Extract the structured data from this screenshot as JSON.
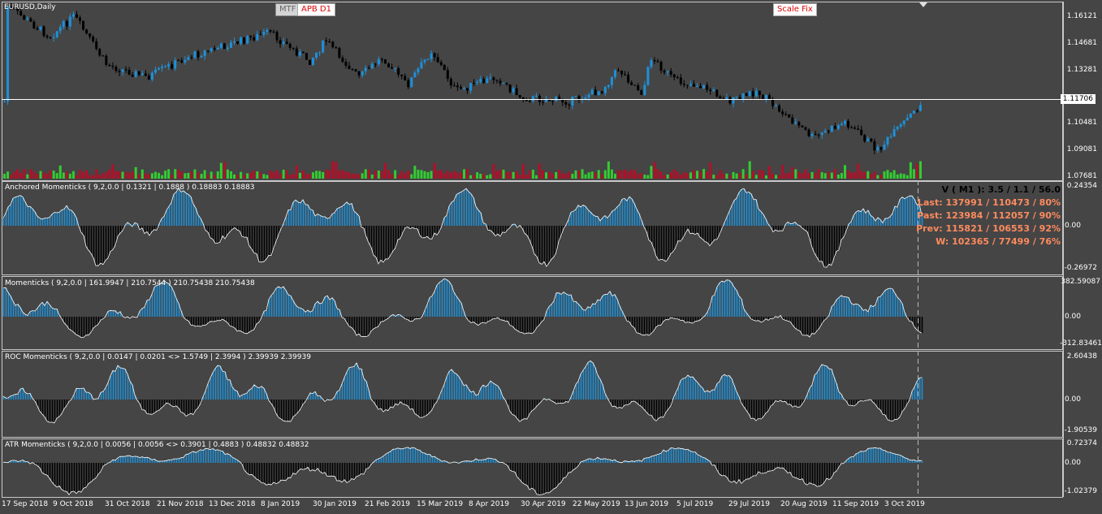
{
  "symbol_label": "EURUSD,Daily",
  "buttons": {
    "mtf": "MTF",
    "apb": "APB D1",
    "scale": "Scale Fix"
  },
  "last_price": "1.11706",
  "price_axis": [
    "1.16121",
    "1.14681",
    "1.13281",
    "1.10481",
    "1.09081",
    "1.07681"
  ],
  "panes": [
    {
      "title": "Anchored Momenticks ( 9,2,0.0 | 0.1321 | 0.1888 ) 0.18883 0.18883",
      "axis": [
        "0.24354",
        "0.00",
        "-0.26972"
      ]
    },
    {
      "title": "Momenticks ( 9,2,0.0 | 161.9947 | 210.7544 ) 210.75438 210.75438",
      "axis": [
        "382.59087",
        "0.00",
        "-312.83461"
      ]
    },
    {
      "title": "ROC Momenticks ( 9,2,0.0 | 0.0147 | 0.0201 <> 1.5749 | 2.3994 ) 2.39939 2.39939",
      "axis": [
        "2.60438",
        "0.00",
        "-1.90539"
      ]
    },
    {
      "title": "ATR Momenticks ( 9,2,0.0 | 0.0056 | 0.0056 <> 0.3901 | 0.4883 ) 0.48832 0.48832",
      "axis": [
        "0.72374",
        "0.00",
        "-1.02379"
      ]
    }
  ],
  "stats": {
    "v": "V ( M1 ): 3.5 / 1.1 / 56.0",
    "last": "Last: 137991 / 110473 / 80%",
    "past": "Past: 123984 / 112057 / 90%",
    "prev": "Prev: 115821 / 106553 / 92%",
    "w": "W: 102365 / 77499 / 76%"
  },
  "dates": [
    "17 Sep 2018",
    "9 Oct 2018",
    "31 Oct 2018",
    "21 Nov 2018",
    "13 Dec 2018",
    "8 Jan 2019",
    "30 Jan 2019",
    "21 Feb 2019",
    "15 Mar 2019",
    "8 Apr 2019",
    "30 Apr 2019",
    "22 May 2019",
    "13 Jun 2019",
    "5 Jul 2019",
    "29 Jul 2019",
    "20 Aug 2019",
    "11 Sep 2019",
    "3 Oct 2019"
  ],
  "colors": {
    "background": "#454545",
    "up": "#1e90d8",
    "down": "#000000",
    "volume_up": "#32cd32",
    "volume_down": "#b0102a",
    "text": "#ffffff"
  }
}
